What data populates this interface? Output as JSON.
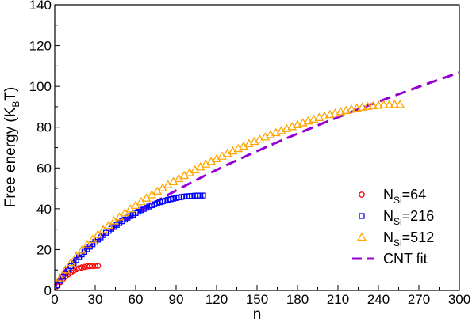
{
  "chart_data": {
    "type": "scatter",
    "xlabel": "n",
    "ylabel": "Free energy (K_BT)",
    "xlim": [
      0,
      300
    ],
    "ylim": [
      0,
      140
    ],
    "xticks": [
      0,
      30,
      60,
      90,
      120,
      150,
      180,
      210,
      240,
      270,
      300
    ],
    "yticks": [
      0,
      20,
      40,
      60,
      80,
      100,
      120,
      140
    ],
    "grid": false,
    "legend_position": "bottom-right",
    "series": [
      {
        "name": "N_Si=64",
        "label_main": "N",
        "label_sub": "Si",
        "label_rest": "=64",
        "marker": "circle",
        "color": "#ff0000",
        "x": [
          0,
          2,
          4,
          6,
          8,
          10,
          12,
          14,
          16,
          18,
          20,
          22,
          24,
          26,
          28,
          30,
          32
        ],
        "y": [
          0,
          2.2,
          4.0,
          5.5,
          6.8,
          7.9,
          8.9,
          9.7,
          10.3,
          10.8,
          11.2,
          11.5,
          11.7,
          11.85,
          11.95,
          12.0,
          12.0
        ]
      },
      {
        "name": "N_Si=216",
        "label_main": "N",
        "label_sub": "Si",
        "label_rest": "=216",
        "marker": "square",
        "color": "#0000ff",
        "x": [
          0,
          2,
          4,
          6,
          8,
          10,
          12,
          14,
          16,
          18,
          20,
          22,
          24,
          26,
          28,
          30,
          32,
          34,
          36,
          38,
          40,
          42,
          44,
          46,
          48,
          50,
          52,
          54,
          56,
          58,
          60,
          62,
          64,
          66,
          68,
          70,
          72,
          74,
          76,
          78,
          80,
          82,
          84,
          86,
          88,
          90,
          92,
          94,
          96,
          98,
          100,
          102,
          104,
          106,
          108,
          110
        ],
        "y": [
          0,
          2.5,
          4.7,
          6.7,
          8.5,
          10.2,
          11.8,
          13.3,
          14.8,
          16.2,
          17.6,
          18.9,
          20.2,
          21.4,
          22.6,
          23.8,
          24.9,
          26.0,
          27.1,
          28.2,
          29.2,
          30.2,
          31.1,
          32.1,
          33.0,
          33.9,
          34.7,
          35.6,
          36.4,
          37.1,
          37.9,
          38.6,
          39.3,
          39.9,
          40.5,
          41.1,
          41.7,
          42.2,
          42.7,
          43.2,
          43.6,
          44.0,
          44.4,
          44.7,
          45.0,
          45.3,
          45.6,
          45.8,
          46.0,
          46.1,
          46.2,
          46.3,
          46.4,
          46.5,
          46.5,
          46.5
        ]
      },
      {
        "name": "N_Si=512",
        "label_main": "N",
        "label_sub": "Si",
        "label_rest": "=512",
        "marker": "triangle",
        "color": "#ffa500",
        "x": [
          0,
          4,
          8,
          12,
          16,
          20,
          24,
          28,
          32,
          36,
          40,
          44,
          48,
          52,
          56,
          60,
          64,
          68,
          72,
          76,
          80,
          84,
          88,
          92,
          96,
          100,
          104,
          108,
          112,
          116,
          120,
          124,
          128,
          132,
          136,
          140,
          144,
          148,
          152,
          156,
          160,
          164,
          168,
          172,
          176,
          180,
          184,
          188,
          192,
          196,
          200,
          204,
          208,
          212,
          216,
          220,
          224,
          228,
          232,
          236,
          240,
          244,
          248,
          252,
          256
        ],
        "y": [
          0,
          6.0,
          10.0,
          13.5,
          16.7,
          19.6,
          22.3,
          24.9,
          27.3,
          29.6,
          31.8,
          33.9,
          35.9,
          37.9,
          39.8,
          41.6,
          43.4,
          45.1,
          46.8,
          48.5,
          50.1,
          51.7,
          53.2,
          54.7,
          56.2,
          57.6,
          59.0,
          60.4,
          61.8,
          63.1,
          64.4,
          65.7,
          67.0,
          68.2,
          69.4,
          70.6,
          71.8,
          72.9,
          74.0,
          75.1,
          76.2,
          77.2,
          78.2,
          79.2,
          80.2,
          81.1,
          82.0,
          82.9,
          83.8,
          84.6,
          85.4,
          86.1,
          86.8,
          87.5,
          88.1,
          88.7,
          89.2,
          89.7,
          90.1,
          90.4,
          90.6,
          90.8,
          90.9,
          91.0,
          91.0
        ]
      },
      {
        "name": "CNT fit",
        "label_main": "CNT fit",
        "label_sub": "",
        "label_rest": "",
        "marker": "dashed-line",
        "color": "#9400d3",
        "model": "a*n^(2/3) - b*n",
        "a": 2.55,
        "b": 0.025,
        "x_range": [
          0,
          300
        ]
      }
    ]
  }
}
